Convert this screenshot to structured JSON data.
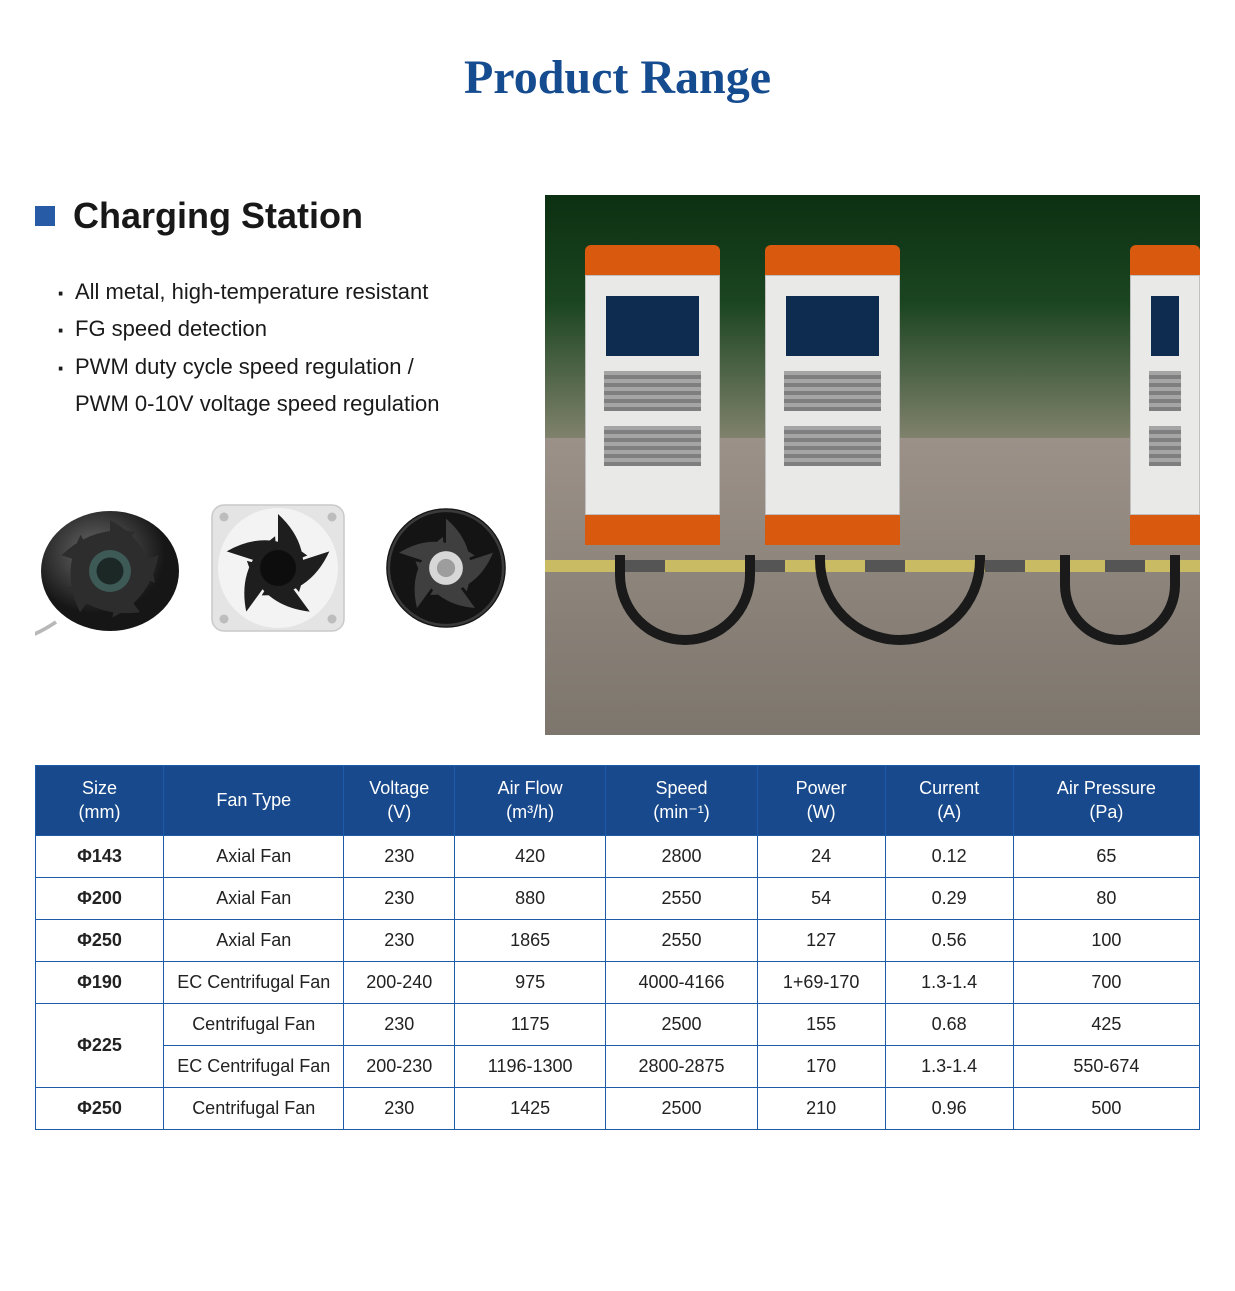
{
  "page_title": "Product Range",
  "section": {
    "title": "Charging Station",
    "bullets": [
      "All metal, high-temperature resistant",
      "FG speed detection",
      "PWM duty cycle speed regulation /",
      "PWM 0-10V voltage speed regulation"
    ],
    "bullet_has_dot": [
      true,
      true,
      true,
      false
    ]
  },
  "colors": {
    "title": "#154b8f",
    "accent_square": "#285ba5",
    "table_header_bg": "#18498c",
    "table_border": "#1d5aa8",
    "text": "#1a1a1a"
  },
  "fan_alt": [
    "centrifugal-fan-dark",
    "axial-fan-silver-frame",
    "axial-fan-round-black"
  ],
  "table": {
    "columns": [
      {
        "l1": "Size",
        "l2": "(mm)"
      },
      {
        "l1": "Fan Type",
        "l2": ""
      },
      {
        "l1": "Voltage",
        "l2": "(V)"
      },
      {
        "l1": "Air Flow",
        "l2": "(m³/h)"
      },
      {
        "l1": "Speed",
        "l2": "(min⁻¹)"
      },
      {
        "l1": "Power",
        "l2": "(W)"
      },
      {
        "l1": "Current",
        "l2": "(A)"
      },
      {
        "l1": "Air Pressure",
        "l2": "(Pa)"
      }
    ],
    "col_widths_pct": [
      11,
      15.5,
      9.5,
      13,
      13,
      11,
      11,
      16
    ],
    "rows": [
      {
        "size": "Φ143",
        "rowspan": 1,
        "cells": [
          "Axial Fan",
          "230",
          "420",
          "2800",
          "24",
          "0.12",
          "65"
        ]
      },
      {
        "size": "Φ200",
        "rowspan": 1,
        "cells": [
          "Axial Fan",
          "230",
          "880",
          "2550",
          "54",
          "0.29",
          "80"
        ]
      },
      {
        "size": "Φ250",
        "rowspan": 1,
        "cells": [
          "Axial Fan",
          "230",
          "1865",
          "2550",
          "127",
          "0.56",
          "100"
        ]
      },
      {
        "size": "Φ190",
        "rowspan": 1,
        "cells": [
          "EC Centrifugal Fan",
          "200-240",
          "975",
          "4000-4166",
          "1+69-170",
          "1.3-1.4",
          "700"
        ]
      },
      {
        "size": "Φ225",
        "rowspan": 2,
        "cells": [
          "Centrifugal Fan",
          "230",
          "1175",
          "2500",
          "155",
          "0.68",
          "425"
        ]
      },
      {
        "size": null,
        "rowspan": 0,
        "cells": [
          "EC Centrifugal Fan",
          "200-230",
          "1196-1300",
          "2800-2875",
          "170",
          "1.3-1.4",
          "550-674"
        ]
      },
      {
        "size": "Φ250",
        "rowspan": 1,
        "cells": [
          "Centrifugal Fan",
          "230",
          "1425",
          "2500",
          "210",
          "0.96",
          "500"
        ]
      }
    ]
  }
}
